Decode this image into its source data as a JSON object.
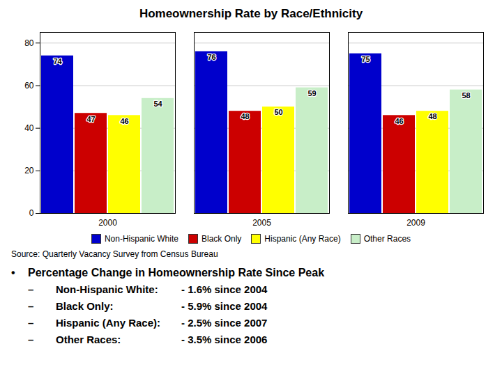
{
  "chart_data": {
    "type": "bar",
    "title": "Homeownership Rate by Race/Ethnicity",
    "categories": [
      "2000",
      "2005",
      "2009"
    ],
    "series": [
      {
        "name": "Non-Hispanic White",
        "color": "#0000CC",
        "values": [
          74,
          76,
          75
        ]
      },
      {
        "name": "Black Only",
        "color": "#CC0000",
        "values": [
          47,
          48,
          46
        ]
      },
      {
        "name": "Hispanic (Any Race)",
        "color": "#FFFF00",
        "values": [
          46,
          50,
          48
        ]
      },
      {
        "name": "Other Races",
        "color": "#C8EEC8",
        "values": [
          54,
          59,
          58
        ]
      }
    ],
    "ylim": [
      0,
      85
    ],
    "yticks": [
      0,
      20,
      40,
      60,
      80
    ],
    "grid": true,
    "data_labels": true,
    "legend": "bottom",
    "source": "Source: Quarterly Vacancy Survey from Census Bureau",
    "annotations": [
      [
        "•",
        "Percentage Change in Homeownership Rate Since Peak"
      ],
      [
        "–",
        "Non-Hispanic White:",
        "- 1.6% since 2004"
      ],
      [
        "–",
        "Black Only:",
        "- 5.9% since 2004"
      ],
      [
        "–",
        "Hispanic (Any Race):",
        "- 2.5% since 2007"
      ],
      [
        "–",
        "Other Races:",
        "- 3.5% since 2006"
      ]
    ]
  }
}
